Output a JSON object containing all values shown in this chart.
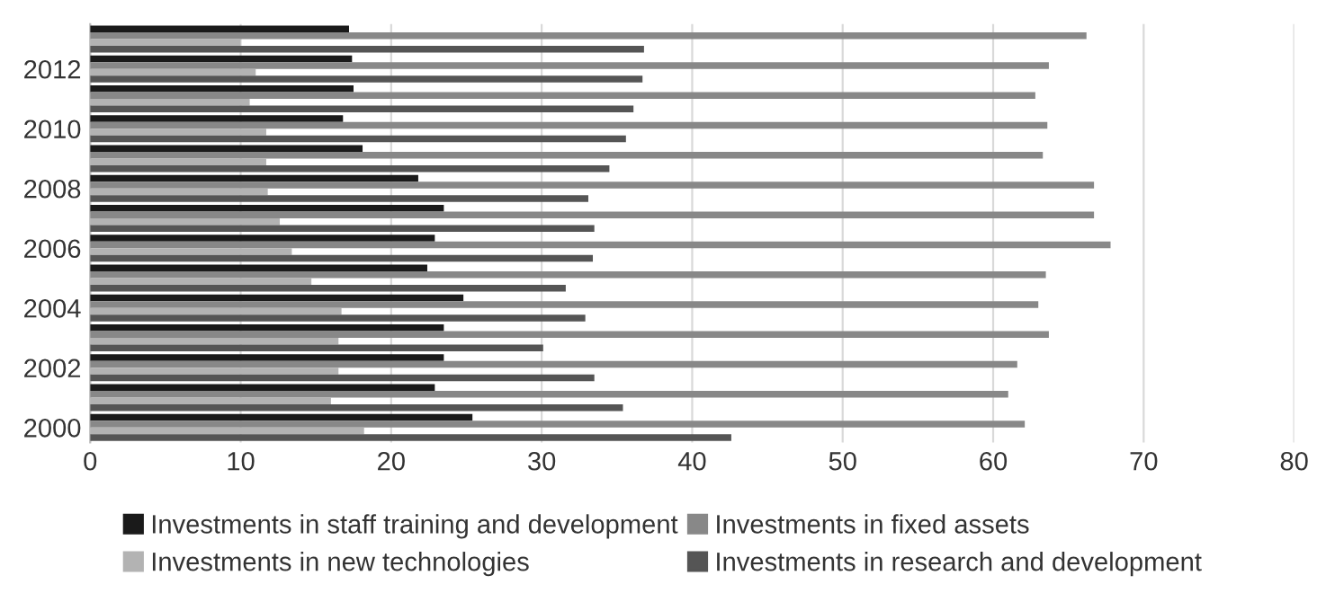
{
  "chart_data": {
    "type": "bar",
    "orientation": "horizontal",
    "categories": [
      null,
      "2012",
      null,
      "2010",
      null,
      "2008",
      null,
      "2006",
      null,
      "2004",
      null,
      "2002",
      null,
      "2000"
    ],
    "series": [
      {
        "name": "Investments in staff training and development",
        "color": "#1a1a1a",
        "values": [
          17.2,
          17.4,
          17.5,
          16.8,
          18.1,
          21.8,
          23.5,
          22.9,
          22.4,
          24.8,
          23.5,
          23.5,
          22.9,
          25.4
        ]
      },
      {
        "name": "Investments in fixed assets",
        "color": "#888888",
        "values": [
          66.2,
          63.7,
          62.8,
          63.6,
          63.3,
          66.7,
          66.7,
          67.8,
          63.5,
          63.0,
          63.7,
          61.6,
          61.0,
          62.1
        ]
      },
      {
        "name": "Investments in new technologies",
        "color": "#b3b3b3",
        "values": [
          10.0,
          11.0,
          10.6,
          11.7,
          11.7,
          11.8,
          12.6,
          13.4,
          14.7,
          16.7,
          16.5,
          16.5,
          16.0,
          18.2
        ]
      },
      {
        "name": "Investments in research and development",
        "color": "#555555",
        "values": [
          36.8,
          36.7,
          36.1,
          35.6,
          34.5,
          33.1,
          33.5,
          33.4,
          31.6,
          32.9,
          30.1,
          33.5,
          35.4,
          42.6
        ]
      }
    ],
    "xlim": [
      0,
      80
    ],
    "xticks": [
      0,
      10,
      20,
      30,
      40,
      50,
      60,
      70,
      80
    ],
    "grid": "x",
    "legend": "bottom"
  }
}
